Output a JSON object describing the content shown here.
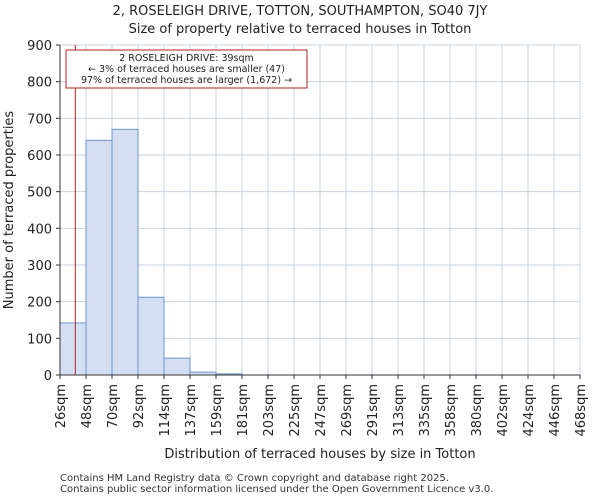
{
  "chart_data": {
    "type": "bar",
    "title": "2, ROSELEIGH DRIVE, TOTTON, SOUTHAMPTON, SO40 7JY",
    "subtitle": "Size of property relative to terraced houses in Totton",
    "xlabel": "Distribution of terraced houses by size in Totton",
    "ylabel": "Number of terraced properties",
    "ylim": [
      0,
      900
    ],
    "yticks": [
      0,
      100,
      200,
      300,
      400,
      500,
      600,
      700,
      800,
      900
    ],
    "bin_edges": [
      26,
      48,
      70,
      92,
      114,
      137,
      159,
      181,
      203,
      225,
      247,
      269,
      291,
      313,
      335,
      358,
      380,
      402,
      424,
      446,
      468
    ],
    "tick_labels": [
      "26sqm",
      "48sqm",
      "70sqm",
      "92sqm",
      "114sqm",
      "137sqm",
      "159sqm",
      "181sqm",
      "203sqm",
      "225sqm",
      "247sqm",
      "269sqm",
      "291sqm",
      "313sqm",
      "335sqm",
      "358sqm",
      "380sqm",
      "402sqm",
      "424sqm",
      "446sqm",
      "468sqm"
    ],
    "values": [
      142,
      640,
      670,
      212,
      46,
      8,
      3,
      0,
      0,
      0,
      0,
      0,
      0,
      0,
      0,
      0,
      0,
      0,
      0,
      0
    ],
    "grid": true,
    "bar_fill": "#d5dff3",
    "bar_edge": "#6f95cc",
    "marker": {
      "value": 39,
      "color": "#b22222"
    },
    "annotation": {
      "lines": [
        "2 ROSELEIGH DRIVE: 39sqm",
        "← 3% of terraced houses are smaller (47)",
        "97% of terraced houses are larger (1,672) →"
      ]
    }
  },
  "footer": {
    "line1": "Contains HM Land Registry data © Crown copyright and database right 2025.",
    "line2": "Contains public sector information licensed under the Open Government Licence v3.0."
  }
}
